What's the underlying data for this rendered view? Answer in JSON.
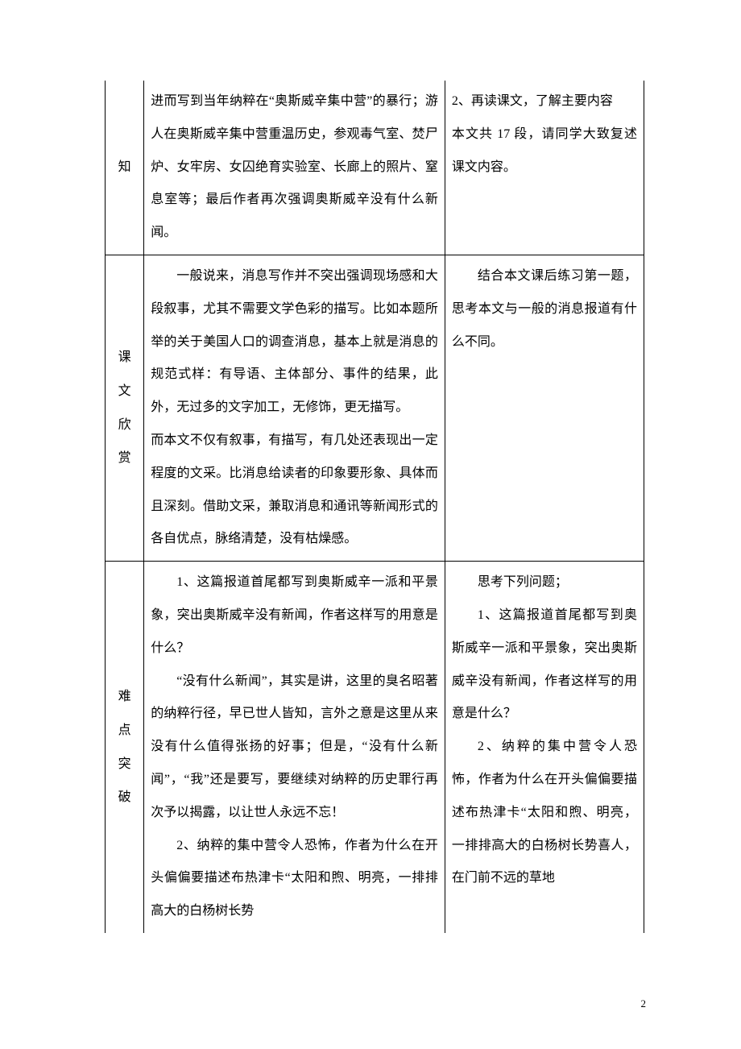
{
  "page_number": "2",
  "rows": [
    {
      "label": "知",
      "main_paragraphs": [
        {
          "cls": "cont",
          "t": "进而写到当年纳粹在“奥斯威辛集中营”的暴行；游人在奥斯威辛集中营重温历史，参观毒气室、焚尸炉、女牢房、女囚绝育实验室、长廊上的照片、窒息室等；最后作者再次强调奥斯威辛没有什么新闻。"
        }
      ],
      "side_paragraphs": [
        {
          "cls": "noindent",
          "t": "2、再读课文，了解主要内容"
        },
        {
          "cls": "noindent",
          "t": "本文共 17 段，请同学大致复述课文内容。"
        }
      ]
    },
    {
      "label": "课文欣赏",
      "main_paragraphs": [
        {
          "cls": "",
          "t": "一般说来，消息写作并不突出强调现场感和大段叙事，尤其不需要文学色彩的描写。比如本题所举的关于美国人口的调查消息，基本上就是消息的规范式样：有导语、主体部分、事件的结果，此外，无过多的文字加工，无修饰，更无描写。"
        },
        {
          "cls": "noindent",
          "t": "而本文不仅有叙事，有描写，有几处还表现出一定程度的文采。比消息给读者的印象要形象、具体而且深刻。借助文采，兼取消息和通讯等新闻形式的各自优点，脉络清楚，没有枯燥感。"
        }
      ],
      "side_paragraphs": [
        {
          "cls": "",
          "t": "结合本文课后练习第一题，思考本文与一般的消息报道有什么不同。"
        }
      ]
    },
    {
      "label": "难点突破",
      "main_paragraphs": [
        {
          "cls": "",
          "t": "1、这篇报道首尾都写到奥斯威辛一派和平景象，突出奥斯威辛没有新闻，作者这样写的用意是什么？"
        },
        {
          "cls": "",
          "t": "“没有什么新闻”，其实是讲，这里的臭名昭著的纳粹行径，早已世人皆知，言外之意是这里从来没有什么值得张扬的好事；但是，“没有什么新闻”，“我”还是要写，要继续对纳粹的历史罪行再次予以揭露，以让世人永远不忘！"
        },
        {
          "cls": "",
          "t": "2、纳粹的集中营令人恐怖，作者为什么在开头偏偏要描述布热津卡“太阳和煦、明亮，一排排高大的白杨树长势"
        }
      ],
      "side_paragraphs": [
        {
          "cls": "",
          "t": "思考下列问题；"
        },
        {
          "cls": "",
          "t": "1、这篇报道首尾都写到奥斯威辛一派和平景象，突出奥斯威辛没有新闻，作者这样写的用意是什么？"
        },
        {
          "cls": "",
          "t": "2、纳粹的集中营令人恐怖，作者为什么在开头偏偏要描述布热津卡“太阳和煦、明亮，一排排高大的白杨树长势喜人，在门前不远的草地"
        }
      ]
    }
  ]
}
